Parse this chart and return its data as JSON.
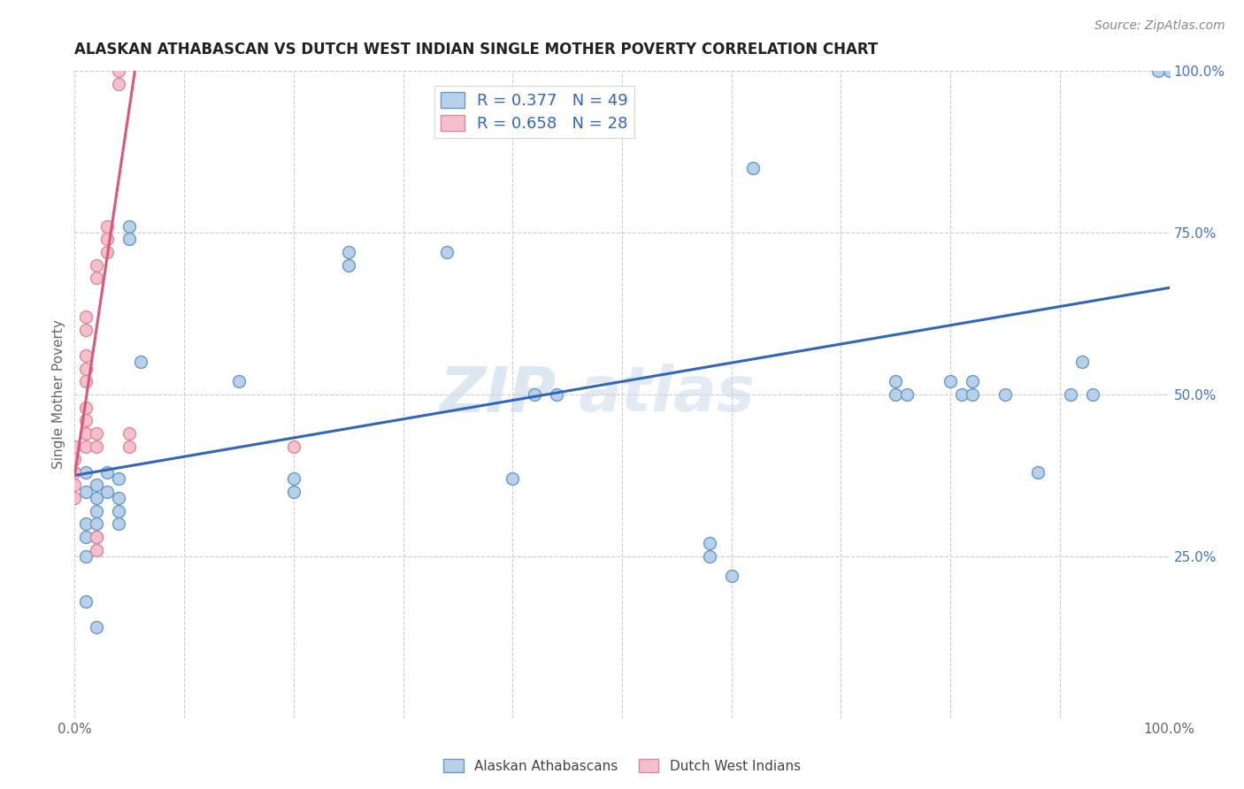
{
  "title": "ALASKAN ATHABASCAN VS DUTCH WEST INDIAN SINGLE MOTHER POVERTY CORRELATION CHART",
  "source": "Source: ZipAtlas.com",
  "ylabel": "Single Mother Poverty",
  "r_blue": 0.377,
  "n_blue": 49,
  "r_pink": 0.658,
  "n_pink": 28,
  "legend_blue": "Alaskan Athabascans",
  "legend_pink": "Dutch West Indians",
  "watermark_line1": "ZIP",
  "watermark_line2": "atlas",
  "blue_points": [
    [
      0.01,
      0.38
    ],
    [
      0.01,
      0.35
    ],
    [
      0.01,
      0.3
    ],
    [
      0.01,
      0.28
    ],
    [
      0.01,
      0.25
    ],
    [
      0.02,
      0.36
    ],
    [
      0.02,
      0.34
    ],
    [
      0.02,
      0.32
    ],
    [
      0.02,
      0.3
    ],
    [
      0.02,
      0.28
    ],
    [
      0.02,
      0.26
    ],
    [
      0.03,
      0.38
    ],
    [
      0.03,
      0.35
    ],
    [
      0.04,
      0.37
    ],
    [
      0.04,
      0.34
    ],
    [
      0.04,
      0.32
    ],
    [
      0.04,
      0.3
    ],
    [
      0.05,
      0.76
    ],
    [
      0.05,
      0.74
    ],
    [
      0.06,
      0.55
    ],
    [
      0.01,
      0.18
    ],
    [
      0.02,
      0.14
    ],
    [
      0.15,
      0.52
    ],
    [
      0.2,
      0.37
    ],
    [
      0.2,
      0.35
    ],
    [
      0.25,
      0.72
    ],
    [
      0.25,
      0.7
    ],
    [
      0.34,
      0.72
    ],
    [
      0.4,
      0.37
    ],
    [
      0.42,
      0.5
    ],
    [
      0.44,
      0.5
    ],
    [
      0.58,
      0.27
    ],
    [
      0.58,
      0.25
    ],
    [
      0.6,
      0.22
    ],
    [
      0.62,
      0.85
    ],
    [
      0.75,
      0.52
    ],
    [
      0.75,
      0.5
    ],
    [
      0.76,
      0.5
    ],
    [
      0.8,
      0.52
    ],
    [
      0.81,
      0.5
    ],
    [
      0.82,
      0.5
    ],
    [
      0.82,
      0.52
    ],
    [
      0.85,
      0.5
    ],
    [
      0.88,
      0.38
    ],
    [
      0.91,
      0.5
    ],
    [
      0.92,
      0.55
    ],
    [
      0.93,
      0.5
    ],
    [
      0.99,
      1.0
    ],
    [
      1.0,
      1.0
    ]
  ],
  "pink_points": [
    [
      0.0,
      0.42
    ],
    [
      0.0,
      0.4
    ],
    [
      0.0,
      0.38
    ],
    [
      0.0,
      0.36
    ],
    [
      0.0,
      0.34
    ],
    [
      0.01,
      0.62
    ],
    [
      0.01,
      0.6
    ],
    [
      0.01,
      0.56
    ],
    [
      0.01,
      0.54
    ],
    [
      0.01,
      0.52
    ],
    [
      0.01,
      0.48
    ],
    [
      0.01,
      0.46
    ],
    [
      0.01,
      0.44
    ],
    [
      0.01,
      0.42
    ],
    [
      0.02,
      0.7
    ],
    [
      0.02,
      0.68
    ],
    [
      0.02,
      0.44
    ],
    [
      0.02,
      0.42
    ],
    [
      0.02,
      0.28
    ],
    [
      0.02,
      0.26
    ],
    [
      0.03,
      0.76
    ],
    [
      0.03,
      0.74
    ],
    [
      0.03,
      0.72
    ],
    [
      0.04,
      1.0
    ],
    [
      0.04,
      0.98
    ],
    [
      0.05,
      0.44
    ],
    [
      0.05,
      0.42
    ],
    [
      0.2,
      0.42
    ]
  ],
  "blue_line_x": [
    0.0,
    1.0
  ],
  "blue_line_y": [
    0.375,
    0.665
  ],
  "pink_line_x": [
    0.0,
    0.055
  ],
  "pink_line_y": [
    0.375,
    1.0
  ],
  "title_fontsize": 12,
  "source_fontsize": 10,
  "label_fontsize": 11,
  "tick_fontsize": 11,
  "legend_fontsize": 13,
  "scatter_size": 100,
  "blue_color": "#b8d0e8",
  "blue_edge": "#6699cc",
  "pink_color": "#f4c0ce",
  "pink_edge": "#dd8899",
  "blue_line_color": "#3366bb",
  "pink_line_color": "#dd5577",
  "grid_color": "#cccccc",
  "bg_color": "#ffffff",
  "right_tick_color": "#4472c4",
  "ytick_labels": [
    "25.0%",
    "50.0%",
    "75.0%",
    "100.0%"
  ],
  "ytick_vals": [
    0.25,
    0.5,
    0.75,
    1.0
  ],
  "xtick_vals": [
    0.0,
    0.1,
    0.2,
    0.3,
    0.4,
    0.5,
    0.6,
    0.7,
    0.8,
    0.9,
    1.0
  ]
}
